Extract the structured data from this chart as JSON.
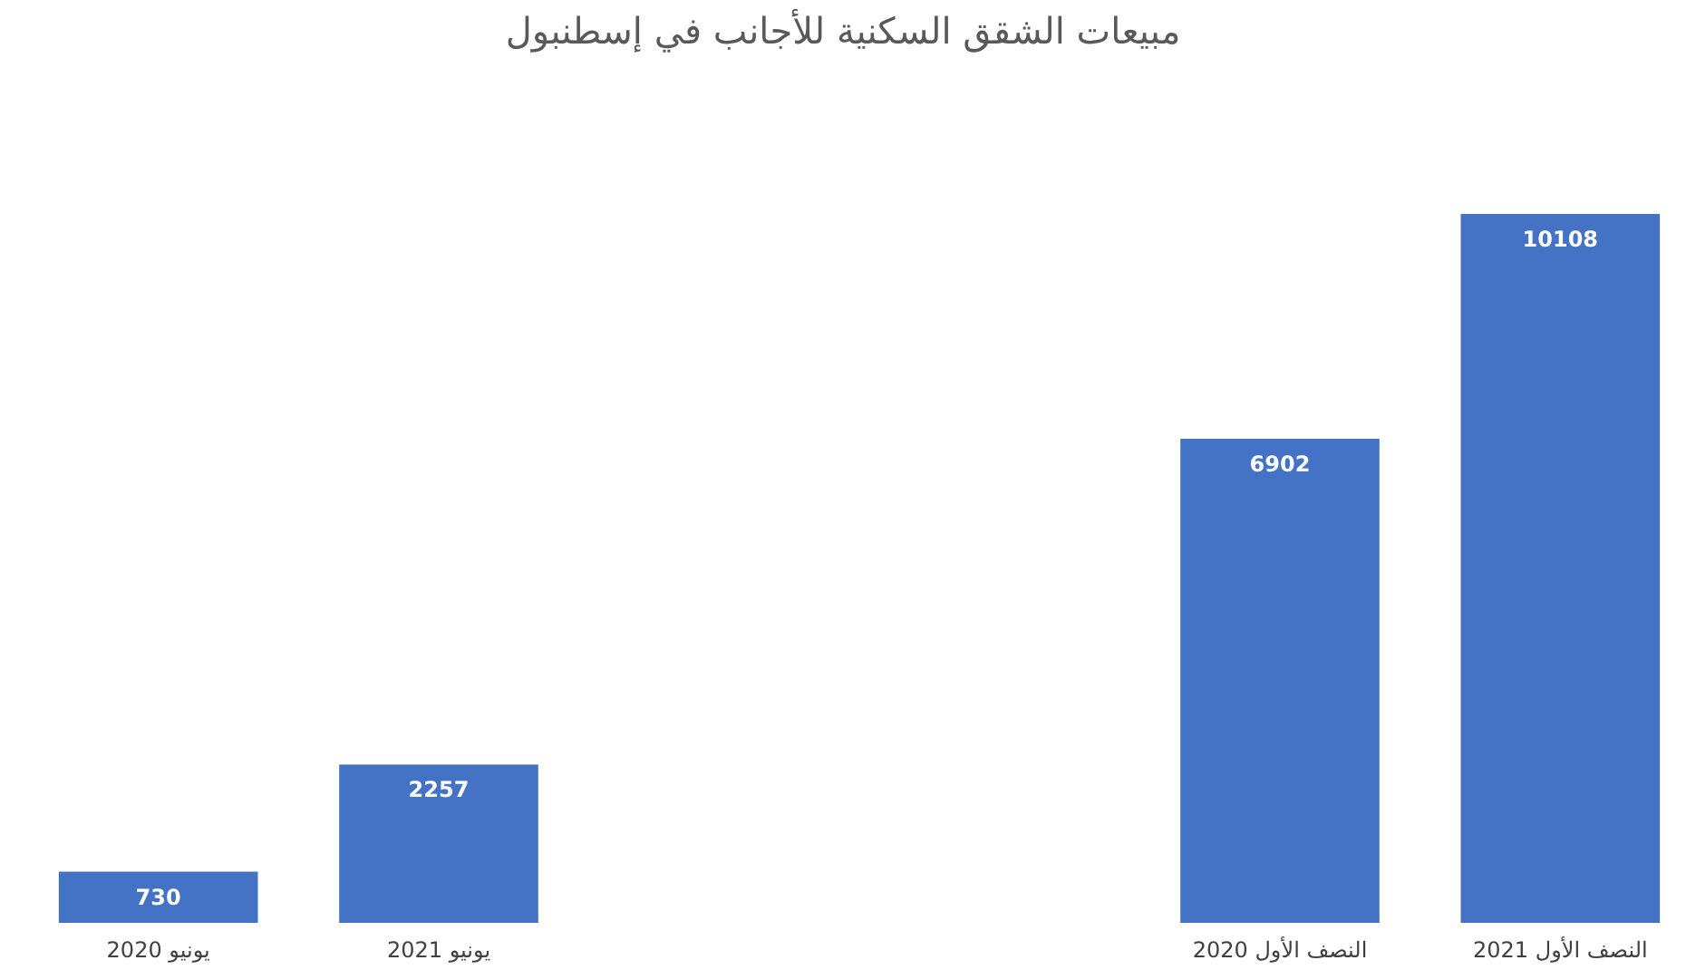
{
  "chart_data": {
    "type": "bar",
    "title": "مبيعات الشقق السكنية للأجانب في إسطنبول",
    "categories": [
      "يونيو 2020",
      "يونيو 2021",
      null,
      null,
      "النصف الأول 2020",
      "النصف الأول 2021"
    ],
    "values": [
      730,
      2257,
      null,
      null,
      6902,
      10108
    ],
    "color": "#4472c4",
    "data_labels": true
  }
}
